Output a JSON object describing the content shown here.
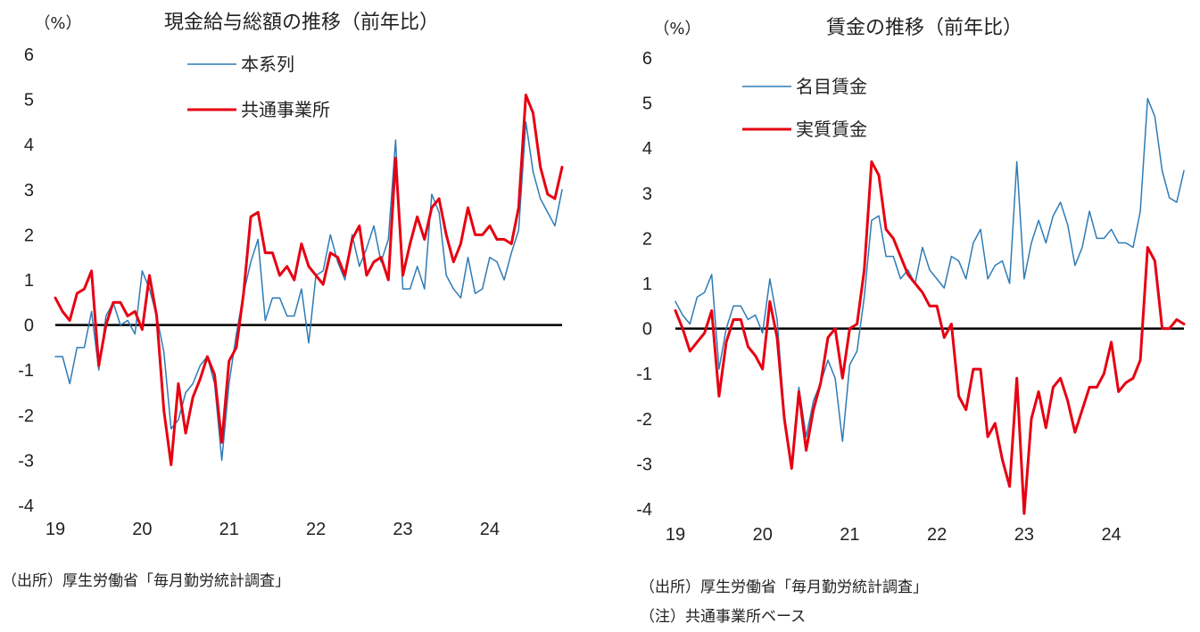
{
  "colors": {
    "series1": "#2e7bb5",
    "series2": "#e60012",
    "zero_line": "#000000",
    "text": "#222222"
  },
  "chart_data": [
    {
      "type": "line",
      "title": "現金給与総額の推移（前年比）",
      "unit_label": "（%）",
      "ylim": [
        -4,
        6
      ],
      "yticks": [
        6,
        5,
        4,
        3,
        2,
        1,
        0,
        -1,
        -2,
        -3,
        -4
      ],
      "xtick_labels": [
        "19",
        "20",
        "21",
        "22",
        "23",
        "24"
      ],
      "x_start": "2019-01",
      "legend_position": "top-center",
      "grid": false,
      "source": "（出所）厚生労働省「毎月勤労統計調査」",
      "series": [
        {
          "name": "本系列",
          "color": "#2e7bb5",
          "width": 1.5,
          "values": [
            -0.7,
            -0.7,
            -1.3,
            -0.5,
            -0.5,
            0.3,
            -1.0,
            0.2,
            0.5,
            0.0,
            0.1,
            -0.2,
            1.2,
            0.8,
            0.2,
            -0.6,
            -2.3,
            -2.1,
            -1.5,
            -1.3,
            -0.9,
            -0.7,
            -1.3,
            -3.0,
            -1.3,
            -0.2,
            0.7,
            1.4,
            1.9,
            0.1,
            0.6,
            0.6,
            0.2,
            0.2,
            0.8,
            -0.4,
            1.1,
            1.2,
            2.0,
            1.4,
            1.0,
            2.0,
            1.3,
            1.7,
            2.2,
            1.4,
            1.9,
            4.1,
            0.8,
            0.8,
            1.3,
            0.8,
            2.9,
            2.5,
            1.1,
            0.8,
            0.6,
            1.5,
            0.7,
            0.8,
            1.5,
            1.4,
            1.0,
            1.6,
            2.1,
            4.5,
            3.4,
            2.8,
            2.5,
            2.2,
            3.0
          ]
        },
        {
          "name": "共通事業所",
          "color": "#e60012",
          "width": 3,
          "values": [
            0.6,
            0.3,
            0.1,
            0.7,
            0.8,
            1.2,
            -0.9,
            0.0,
            0.5,
            0.5,
            0.2,
            0.3,
            -0.1,
            1.1,
            0.2,
            -1.9,
            -3.1,
            -1.3,
            -2.4,
            -1.6,
            -1.2,
            -0.7,
            -1.1,
            -2.6,
            -0.8,
            -0.5,
            0.7,
            2.4,
            2.5,
            1.6,
            1.6,
            1.1,
            1.3,
            1.0,
            1.8,
            1.3,
            1.1,
            0.9,
            1.6,
            1.5,
            1.1,
            1.9,
            2.2,
            1.1,
            1.4,
            1.5,
            1.0,
            3.7,
            1.1,
            1.8,
            2.4,
            1.9,
            2.6,
            2.8,
            2.0,
            1.4,
            1.8,
            2.6,
            2.0,
            2.0,
            2.2,
            1.9,
            1.9,
            1.8,
            2.6,
            5.1,
            4.7,
            3.5,
            2.9,
            2.8,
            3.5
          ]
        }
      ]
    },
    {
      "type": "line",
      "title": "賃金の推移（前年比）",
      "unit_label": "（%）",
      "ylim": [
        -4,
        6
      ],
      "yticks": [
        6,
        5,
        4,
        3,
        2,
        1,
        0,
        -1,
        -2,
        -3,
        -4
      ],
      "xtick_labels": [
        "19",
        "20",
        "21",
        "22",
        "23",
        "24"
      ],
      "x_start": "2019-01",
      "legend_position": "top-center",
      "grid": false,
      "source": "（出所）厚生労働省「毎月勤労統計調査」",
      "note": "（注）共通事業所ベース",
      "series": [
        {
          "name": "名目賃金",
          "color": "#2e7bb5",
          "width": 1.5,
          "values": [
            0.6,
            0.3,
            0.1,
            0.7,
            0.8,
            1.2,
            -0.9,
            0.0,
            0.5,
            0.5,
            0.2,
            0.3,
            -0.1,
            1.1,
            0.2,
            -1.9,
            -3.1,
            -1.3,
            -2.4,
            -1.6,
            -1.2,
            -0.7,
            -1.1,
            -2.5,
            -0.8,
            -0.5,
            0.7,
            2.4,
            2.5,
            1.6,
            1.6,
            1.1,
            1.3,
            1.0,
            1.8,
            1.3,
            1.1,
            0.9,
            1.6,
            1.5,
            1.1,
            1.9,
            2.2,
            1.1,
            1.4,
            1.5,
            1.0,
            3.7,
            1.1,
            1.9,
            2.4,
            1.9,
            2.5,
            2.8,
            2.3,
            1.4,
            1.8,
            2.6,
            2.0,
            2.0,
            2.2,
            1.9,
            1.9,
            1.8,
            2.6,
            5.1,
            4.7,
            3.5,
            2.9,
            2.8,
            3.5
          ]
        },
        {
          "name": "実質賃金",
          "color": "#e60012",
          "width": 3,
          "values": [
            0.4,
            0.0,
            -0.5,
            -0.3,
            -0.1,
            0.4,
            -1.5,
            -0.3,
            0.2,
            0.2,
            -0.4,
            -0.6,
            -0.9,
            0.6,
            -0.2,
            -2.0,
            -3.1,
            -1.4,
            -2.7,
            -1.8,
            -1.2,
            -0.2,
            0.0,
            -1.1,
            0.0,
            0.1,
            1.3,
            3.7,
            3.4,
            2.2,
            2.0,
            1.6,
            1.2,
            1.0,
            0.8,
            0.5,
            0.5,
            -0.2,
            0.1,
            -1.5,
            -1.8,
            -0.9,
            -0.9,
            -2.4,
            -2.1,
            -2.9,
            -3.5,
            -1.1,
            -4.1,
            -2.0,
            -1.4,
            -2.2,
            -1.3,
            -1.1,
            -1.6,
            -2.3,
            -1.8,
            -1.3,
            -1.3,
            -1.0,
            -0.3,
            -1.4,
            -1.2,
            -1.1,
            -0.7,
            1.8,
            1.5,
            0.0,
            0.0,
            0.2,
            0.1
          ]
        }
      ]
    }
  ]
}
